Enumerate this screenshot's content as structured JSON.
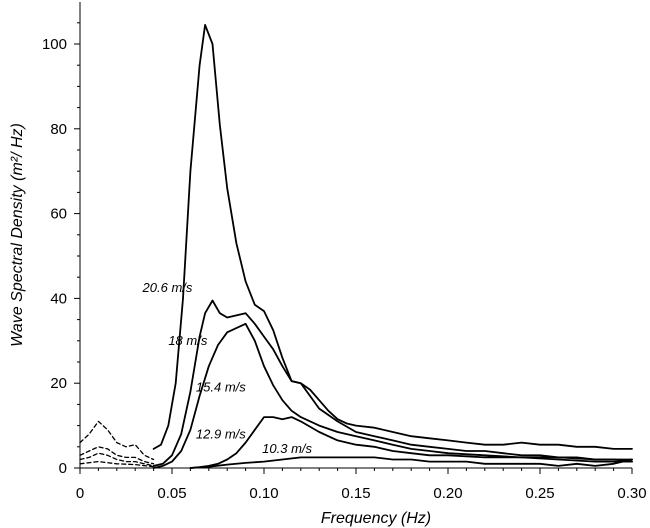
{
  "chart_data": {
    "type": "line",
    "xlabel": "Frequency (Hz)",
    "ylabel": "Wave Spectral Density (m²/ Hz)",
    "xlim": [
      0,
      0.3
    ],
    "ylim": [
      0,
      110
    ],
    "xticks": [
      0,
      0.05,
      0.1,
      0.15,
      0.2,
      0.25,
      0.3
    ],
    "xtick_labels": [
      "0",
      "0.05",
      "0.10",
      "0.15",
      "0.20",
      "0.25",
      "0.30"
    ],
    "yticks": [
      0,
      20,
      40,
      60,
      80,
      100
    ],
    "ytick_labels": [
      "0",
      "20",
      "40",
      "60",
      "80",
      "100"
    ],
    "grid": false,
    "legend": "none",
    "series": [
      {
        "name": "20.6 m/s",
        "x": [
          0.04,
          0.044,
          0.048,
          0.052,
          0.056,
          0.06,
          0.065,
          0.068,
          0.072,
          0.076,
          0.08,
          0.085,
          0.09,
          0.095,
          0.1,
          0.105,
          0.11,
          0.115,
          0.12,
          0.125,
          0.13,
          0.135,
          0.14,
          0.145,
          0.15,
          0.16,
          0.17,
          0.18,
          0.19,
          0.2,
          0.21,
          0.22,
          0.23,
          0.24,
          0.25,
          0.26,
          0.27,
          0.28,
          0.29,
          0.3
        ],
        "y": [
          4.5,
          5.5,
          10,
          20,
          40,
          70,
          95,
          104.5,
          100,
          81,
          66,
          53,
          44,
          38.5,
          37,
          32.5,
          26,
          20.5,
          20,
          18.5,
          16,
          13.5,
          11.5,
          10.5,
          10,
          9.5,
          8.5,
          7.5,
          7,
          6.5,
          6,
          5.5,
          5.5,
          6,
          5.5,
          5.5,
          5,
          5,
          4.5,
          4.5
        ]
      },
      {
        "name": "18 m/s",
        "x": [
          0.04,
          0.045,
          0.05,
          0.055,
          0.06,
          0.065,
          0.068,
          0.072,
          0.076,
          0.08,
          0.085,
          0.09,
          0.095,
          0.1,
          0.105,
          0.11,
          0.115,
          0.12,
          0.125,
          0.13,
          0.14,
          0.15,
          0.16,
          0.17,
          0.18,
          0.19,
          0.2,
          0.21,
          0.22,
          0.23,
          0.24,
          0.25,
          0.26,
          0.27,
          0.28,
          0.29,
          0.3
        ],
        "y": [
          0.5,
          1,
          3,
          8,
          18,
          31,
          36.5,
          39.5,
          36.5,
          35.5,
          36,
          36.5,
          34,
          31,
          28,
          24,
          20.5,
          20,
          17,
          14,
          11,
          8.5,
          7.5,
          6.5,
          5.5,
          5,
          4.5,
          4,
          4,
          3.5,
          3,
          3,
          2.5,
          2.5,
          2,
          2,
          1.5
        ]
      },
      {
        "name": "15.4 m/s",
        "x": [
          0.04,
          0.045,
          0.05,
          0.055,
          0.06,
          0.065,
          0.07,
          0.075,
          0.08,
          0.085,
          0.09,
          0.095,
          0.1,
          0.105,
          0.11,
          0.115,
          0.12,
          0.13,
          0.14,
          0.15,
          0.16,
          0.17,
          0.18,
          0.19,
          0.2,
          0.22,
          0.24,
          0.26,
          0.28,
          0.3
        ],
        "y": [
          0,
          0.5,
          1.5,
          4,
          9,
          17,
          24,
          29,
          32,
          33,
          34,
          30,
          24,
          19.5,
          16,
          13.5,
          12,
          10,
          8.5,
          7.5,
          6.5,
          5.5,
          4.5,
          4,
          3.5,
          3,
          2.5,
          2.5,
          2,
          2
        ]
      },
      {
        "name": "12.9 m/s",
        "x": [
          0.06,
          0.065,
          0.07,
          0.075,
          0.08,
          0.085,
          0.09,
          0.095,
          0.1,
          0.105,
          0.11,
          0.115,
          0.12,
          0.13,
          0.14,
          0.15,
          0.16,
          0.17,
          0.18,
          0.19,
          0.2,
          0.22,
          0.24,
          0.26,
          0.28,
          0.3
        ],
        "y": [
          0,
          0.2,
          0.5,
          1,
          2,
          3.5,
          6,
          9,
          12,
          12,
          11.5,
          12,
          11,
          8.5,
          6.5,
          5.5,
          5,
          4,
          3.5,
          3,
          3,
          2.5,
          2.5,
          2,
          1.5,
          1.5
        ]
      },
      {
        "name": "10.3 m/s",
        "x": [
          0.06,
          0.07,
          0.08,
          0.09,
          0.1,
          0.11,
          0.12,
          0.13,
          0.14,
          0.15,
          0.16,
          0.17,
          0.18,
          0.19,
          0.2,
          0.21,
          0.22,
          0.23,
          0.24,
          0.25,
          0.26,
          0.27,
          0.28,
          0.29,
          0.3
        ],
        "y": [
          0,
          0.3,
          0.8,
          1.2,
          1.5,
          2,
          2.5,
          2.5,
          2.5,
          2.5,
          2.5,
          2,
          2,
          1.5,
          1.5,
          1.5,
          1,
          1,
          1,
          1,
          0.5,
          1,
          0.5,
          1,
          2
        ]
      },
      {
        "x": [
          0,
          0.005,
          0.01,
          0.015,
          0.02,
          0.025,
          0.03,
          0.035,
          0.04
        ],
        "y": [
          6,
          8,
          11,
          9,
          6,
          5,
          5.5,
          3,
          2
        ],
        "dashed": true
      },
      {
        "x": [
          0,
          0.005,
          0.01,
          0.015,
          0.02,
          0.025,
          0.03,
          0.035,
          0.04
        ],
        "y": [
          3,
          4,
          5,
          4.5,
          3,
          2.5,
          2.5,
          1.5,
          1
        ],
        "dashed": true
      },
      {
        "x": [
          0,
          0.005,
          0.01,
          0.015,
          0.02,
          0.025,
          0.03,
          0.035,
          0.04
        ],
        "y": [
          2,
          2.5,
          3.5,
          3,
          2,
          1.5,
          1.5,
          1,
          0.5
        ],
        "dashed": true
      },
      {
        "x": [
          0,
          0.01,
          0.02,
          0.03,
          0.04
        ],
        "y": [
          1,
          1.5,
          1,
          0.8,
          0.3
        ],
        "dashed": true
      }
    ],
    "annotations": [
      {
        "text": "20.6 m/s",
        "x": 0.034,
        "y": 41.5
      },
      {
        "text": "18 m/s",
        "x": 0.048,
        "y": 29
      },
      {
        "text": "15.4 m/s",
        "x": 0.063,
        "y": 18
      },
      {
        "text": "12.9 m/s",
        "x": 0.063,
        "y": 7
      },
      {
        "text": "10.3 m/s",
        "x": 0.099,
        "y": 3.5
      }
    ]
  }
}
